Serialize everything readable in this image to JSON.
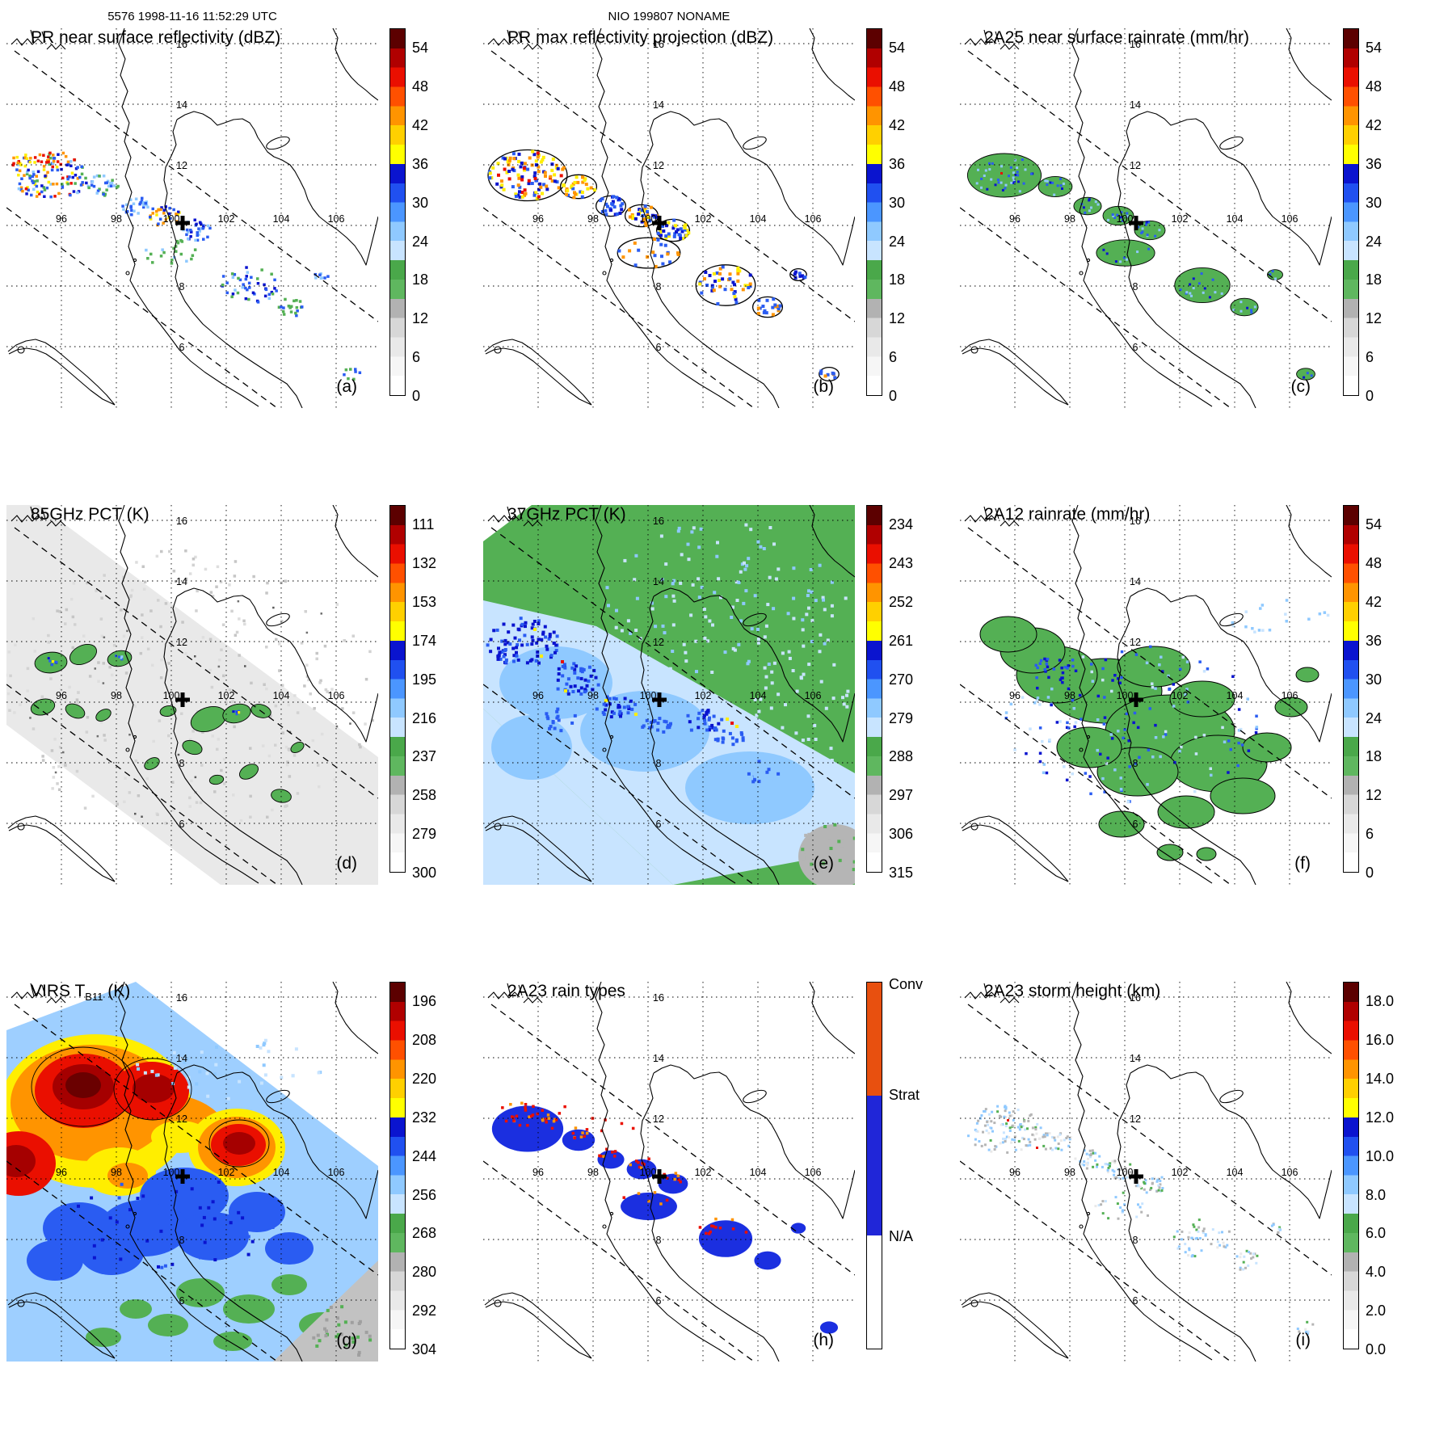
{
  "header": {
    "left": "5576 1998-11-16 11:52:29 UTC",
    "center": "NIO 199807 NONAME"
  },
  "map": {
    "lon_labels": [
      "96",
      "98",
      "100",
      "102",
      "104",
      "106"
    ],
    "lat_labels": [
      "16",
      "14",
      "12",
      "8",
      "6"
    ],
    "storm_marker": {
      "symbol": "plus",
      "approx_lon": 100.4,
      "approx_lat": 10.1
    }
  },
  "colors": {
    "palette": {
      "green": "#54b054",
      "paleblue": "#c8e4ff",
      "lightblue": "#8fc9ff",
      "blue": "#2a5cf2",
      "darkblue": "#0a14cf",
      "yellow": "#ffee00",
      "orange": "#ff9400",
      "red": "#ea0f00",
      "darkred": "#a50000",
      "gray": "#b5b5b5",
      "lightgray": "#e9e9e9"
    },
    "colormap": [
      "#ffffff",
      "#f6f6f6",
      "#e9e9e9",
      "#d7d7d7",
      "#b2b2b2",
      "#5fb75f",
      "#4aa84a",
      "#c8e4ff",
      "#8fc9ff",
      "#4b96ff",
      "#2050f0",
      "#0a14cf",
      "#ffff00",
      "#ffd000",
      "#ff9400",
      "#ff5000",
      "#ea0f00",
      "#b00000",
      "#5c0000"
    ],
    "raintype": {
      "conv": "#e8500f",
      "strat": "#2026d8",
      "na": "#ffffff"
    }
  },
  "panels": [
    {
      "id": "a",
      "letter": "(a)",
      "header": "5576 1998-11-16 11:52:29 UTC",
      "title": "PR near surface reflectivity (dBZ)",
      "colorbar": {
        "kind": "rainbow",
        "ticks": [
          "54",
          "48",
          "42",
          "36",
          "30",
          "24",
          "18",
          "12",
          "6",
          "0"
        ]
      }
    },
    {
      "id": "b",
      "letter": "(b)",
      "header": "NIO 199807 NONAME",
      "title": "PR max reflectivity projection (dBZ)",
      "colorbar": {
        "kind": "rainbow",
        "ticks": [
          "54",
          "48",
          "42",
          "36",
          "30",
          "24",
          "18",
          "12",
          "6",
          "0"
        ]
      }
    },
    {
      "id": "c",
      "letter": "(c)",
      "title": "2A25 near surface rainrate (mm/hr)",
      "colorbar": {
        "kind": "rainbow",
        "ticks": [
          "54",
          "48",
          "42",
          "36",
          "30",
          "24",
          "18",
          "12",
          "6",
          "0"
        ]
      }
    },
    {
      "id": "d",
      "letter": "(d)",
      "title": "85GHz PCT (K)",
      "colorbar": {
        "kind": "rainbow",
        "ticks": [
          "111",
          "132",
          "153",
          "174",
          "195",
          "216",
          "237",
          "258",
          "279",
          "300"
        ]
      }
    },
    {
      "id": "e",
      "letter": "(e)",
      "title": "37GHz PCT (K)",
      "colorbar": {
        "kind": "rainbow",
        "ticks": [
          "234",
          "243",
          "252",
          "261",
          "270",
          "279",
          "288",
          "297",
          "306",
          "315"
        ]
      }
    },
    {
      "id": "f",
      "letter": "(f)",
      "title": "2A12 rainrate (mm/hr)",
      "colorbar": {
        "kind": "rainbow",
        "ticks": [
          "54",
          "48",
          "42",
          "36",
          "30",
          "24",
          "18",
          "12",
          "6",
          "0"
        ]
      }
    },
    {
      "id": "g",
      "letter": "(g)",
      "title": "VIRS T",
      "title_sub": "B11",
      "title_tail": " (K)",
      "colorbar": {
        "kind": "rainbow",
        "ticks": [
          "196",
          "208",
          "220",
          "232",
          "244",
          "256",
          "268",
          "280",
          "292",
          "304"
        ]
      }
    },
    {
      "id": "h",
      "letter": "(h)",
      "title": "2A23 rain types",
      "colorbar": {
        "kind": "raintype",
        "labels": [
          "Conv",
          "Strat",
          "N/A"
        ]
      }
    },
    {
      "id": "i",
      "letter": "(i)",
      "title": "2A23 storm height (km)",
      "colorbar": {
        "kind": "rainbow",
        "ticks": [
          "18.0",
          "16.0",
          "14.0",
          "12.0",
          "10.0",
          "8.0",
          "6.0",
          "4.0",
          "2.0",
          "0.0"
        ]
      }
    }
  ],
  "chart_data": [
    {
      "type": "heatmap",
      "panel": "(a)",
      "title": "PR near surface reflectivity (dBZ)",
      "units": "dBZ",
      "colorbar_ticks": [
        54,
        48,
        42,
        36,
        30,
        24,
        18,
        12,
        6,
        0
      ],
      "lon_range": [
        94,
        107.5
      ],
      "lat_range": [
        4,
        16.5
      ],
      "lon_ticks": [
        96,
        98,
        100,
        102,
        104,
        106
      ],
      "lat_ticks": [
        16,
        14,
        12,
        8,
        6
      ],
      "grid": "dotted",
      "notes": "scattered radar echoes along a NW-SE satellite swath; mixed blue/yellow/orange cells upper-left, blue patches center-right"
    },
    {
      "type": "heatmap",
      "panel": "(b)",
      "title": "PR max reflectivity projection (dBZ)",
      "units": "dBZ",
      "colorbar_ticks": [
        54,
        48,
        42,
        36,
        30,
        24,
        18,
        12,
        6,
        0
      ],
      "lon_range": [
        94,
        107.5
      ],
      "lat_range": [
        4,
        16.5
      ],
      "lon_ticks": [
        96,
        98,
        100,
        102,
        104,
        106
      ],
      "lat_ticks": [
        16,
        14,
        12,
        8,
        6
      ],
      "grid": "dotted",
      "notes": "same echo regions as (a) with stronger yellow/orange values and black contour outlines"
    },
    {
      "type": "heatmap",
      "panel": "(c)",
      "title": "2A25 near surface rainrate (mm/hr)",
      "units": "mm/hr",
      "colorbar_ticks": [
        54,
        48,
        42,
        36,
        30,
        24,
        18,
        12,
        6,
        0
      ],
      "lon_range": [
        94,
        107.5
      ],
      "lat_range": [
        4,
        16.5
      ],
      "lon_ticks": [
        96,
        98,
        100,
        102,
        104,
        106
      ],
      "lat_ticks": [
        16,
        14,
        12,
        8,
        6
      ],
      "grid": "dotted",
      "notes": "green rain areas with sparse blue speckles along the PR swath"
    },
    {
      "type": "heatmap",
      "panel": "(d)",
      "title": "85GHz PCT (K)",
      "units": "K",
      "colorbar_ticks": [
        111,
        132,
        153,
        174,
        195,
        216,
        237,
        258,
        279,
        300
      ],
      "lon_range": [
        94,
        107.5
      ],
      "lat_range": [
        4,
        16.5
      ],
      "lon_ticks": [
        96,
        98,
        100,
        102,
        104,
        106
      ],
      "lat_ticks": [
        16,
        14,
        12,
        8,
        6
      ],
      "grid": "dotted",
      "notes": "wide gray TMI swath with small outlined green depressions and a few blue/yellow cores"
    },
    {
      "type": "heatmap",
      "panel": "(e)",
      "title": "37GHz PCT (K)",
      "units": "K",
      "colorbar_ticks": [
        234,
        243,
        252,
        261,
        270,
        279,
        288,
        297,
        306,
        315
      ],
      "lon_range": [
        94,
        107.5
      ],
      "lat_range": [
        4,
        16.5
      ],
      "lon_ticks": [
        96,
        98,
        100,
        102,
        104,
        106
      ],
      "lat_ticks": [
        16,
        14,
        12,
        8,
        6
      ],
      "grid": "dotted",
      "notes": "green background with pale-blue/blue bands, dark-blue clusters, isolated yellow/red pixels, gray patch bottom-right"
    },
    {
      "type": "heatmap",
      "panel": "(f)",
      "title": "2A12 rainrate (mm/hr)",
      "units": "mm/hr",
      "colorbar_ticks": [
        54,
        48,
        42,
        36,
        30,
        24,
        18,
        12,
        6,
        0
      ],
      "lon_range": [
        94,
        107.5
      ],
      "lat_range": [
        4,
        16.5
      ],
      "lon_ticks": [
        96,
        98,
        100,
        102,
        104,
        106
      ],
      "lat_ticks": [
        16,
        14,
        12,
        8,
        6
      ],
      "grid": "dotted",
      "notes": "extensive outlined green rain regions with blue speckles across the TMI swath"
    },
    {
      "type": "heatmap",
      "panel": "(g)",
      "title": "VIRS TB11 (K)",
      "units": "K",
      "colorbar_ticks": [
        196,
        208,
        220,
        232,
        244,
        256,
        268,
        280,
        292,
        304
      ],
      "lon_range": [
        94,
        107.5
      ],
      "lat_range": [
        4,
        16.5
      ],
      "lon_ticks": [
        96,
        98,
        100,
        102,
        104,
        106
      ],
      "lat_ticks": [
        16,
        14,
        12,
        8,
        6
      ],
      "grid": "dotted",
      "notes": "full-swath IR field: dark-red cold cloud tops ringed by red/orange/yellow, blue and light-blue elsewhere, green/gray toward lower right"
    },
    {
      "type": "heatmap",
      "panel": "(h)",
      "title": "2A23 rain types",
      "categories": [
        "Conv",
        "Strat",
        "N/A"
      ],
      "legend_colors": {
        "Conv": "#e8500f",
        "Strat": "#2026d8",
        "N/A": "#ffffff"
      },
      "lon_range": [
        94,
        107.5
      ],
      "lat_range": [
        4,
        16.5
      ],
      "lon_ticks": [
        96,
        98,
        100,
        102,
        104,
        106
      ],
      "lat_ticks": [
        16,
        14,
        12,
        8,
        6
      ],
      "grid": "dotted",
      "notes": "blue stratiform areas with scattered red/orange convective pixels along the PR swath"
    },
    {
      "type": "heatmap",
      "panel": "(i)",
      "title": "2A23 storm height (km)",
      "units": "km",
      "colorbar_ticks": [
        18.0,
        16.0,
        14.0,
        12.0,
        10.0,
        8.0,
        6.0,
        4.0,
        2.0,
        0.0
      ],
      "lon_range": [
        94,
        107.5
      ],
      "lat_range": [
        4,
        16.5
      ],
      "lon_ticks": [
        96,
        98,
        100,
        102,
        104,
        106
      ],
      "lat_ticks": [
        16,
        14,
        12,
        8,
        6
      ],
      "grid": "dotted",
      "notes": "gray/light-blue/green storm-height speckles along the PR swath"
    }
  ]
}
